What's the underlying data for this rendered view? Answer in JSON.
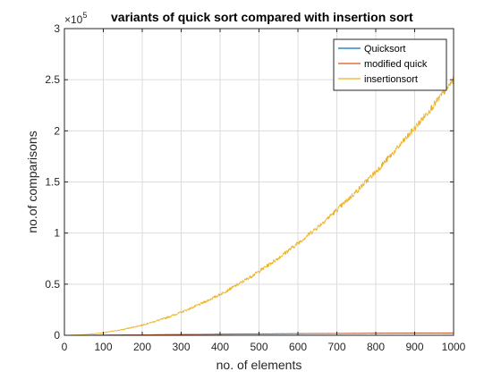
{
  "chart_data": {
    "type": "line",
    "title": "variants of quick sort compared with insertion sort",
    "xlabel": "no. of elements",
    "ylabel": "no.of comparisons",
    "y_exponent_label": "×10",
    "y_exponent_power": "5",
    "y_scale_factor": 100000,
    "xlim": [
      0,
      1000
    ],
    "ylim": [
      0,
      3
    ],
    "xticks": [
      0,
      100,
      200,
      300,
      400,
      500,
      600,
      700,
      800,
      900,
      1000
    ],
    "xtick_labels": [
      "0",
      "100",
      "200",
      "300",
      "400",
      "500",
      "600",
      "700",
      "800",
      "900",
      "1000"
    ],
    "yticks": [
      0,
      0.5,
      1,
      1.5,
      2,
      2.5,
      3
    ],
    "ytick_labels": [
      "0",
      "0.5",
      "1",
      "1.5",
      "2",
      "2.5",
      "3"
    ],
    "grid": true,
    "legend_position": "top-right",
    "x": [
      0,
      50,
      100,
      150,
      200,
      250,
      300,
      350,
      400,
      450,
      500,
      550,
      600,
      650,
      700,
      750,
      800,
      850,
      900,
      950,
      1000
    ],
    "series": [
      {
        "name": "Quicksort",
        "color": "#0072BD",
        "values": [
          0,
          0.001,
          0.0023,
          0.0036,
          0.0051,
          0.0067,
          0.0083,
          0.0099,
          0.0115,
          0.0128,
          0.0142,
          0.0153,
          0.0165,
          0.0178,
          0.0188,
          0.0197,
          0.0206,
          0.0214,
          0.0222,
          0.0228,
          0.0232
        ]
      },
      {
        "name": "modified quick",
        "color": "#D95319",
        "values": [
          0,
          0.0009,
          0.0021,
          0.0034,
          0.0048,
          0.0063,
          0.0078,
          0.0093,
          0.0108,
          0.0121,
          0.0134,
          0.0145,
          0.0157,
          0.0169,
          0.0179,
          0.0188,
          0.0197,
          0.0205,
          0.0212,
          0.0218,
          0.022
        ]
      },
      {
        "name": "insertionsort",
        "color": "#EDB120",
        "values": [
          0,
          0.006,
          0.025,
          0.056,
          0.1,
          0.156,
          0.225,
          0.306,
          0.4,
          0.506,
          0.625,
          0.756,
          0.9,
          1.056,
          1.225,
          1.406,
          1.6,
          1.806,
          2.025,
          2.256,
          2.5
        ]
      }
    ]
  }
}
